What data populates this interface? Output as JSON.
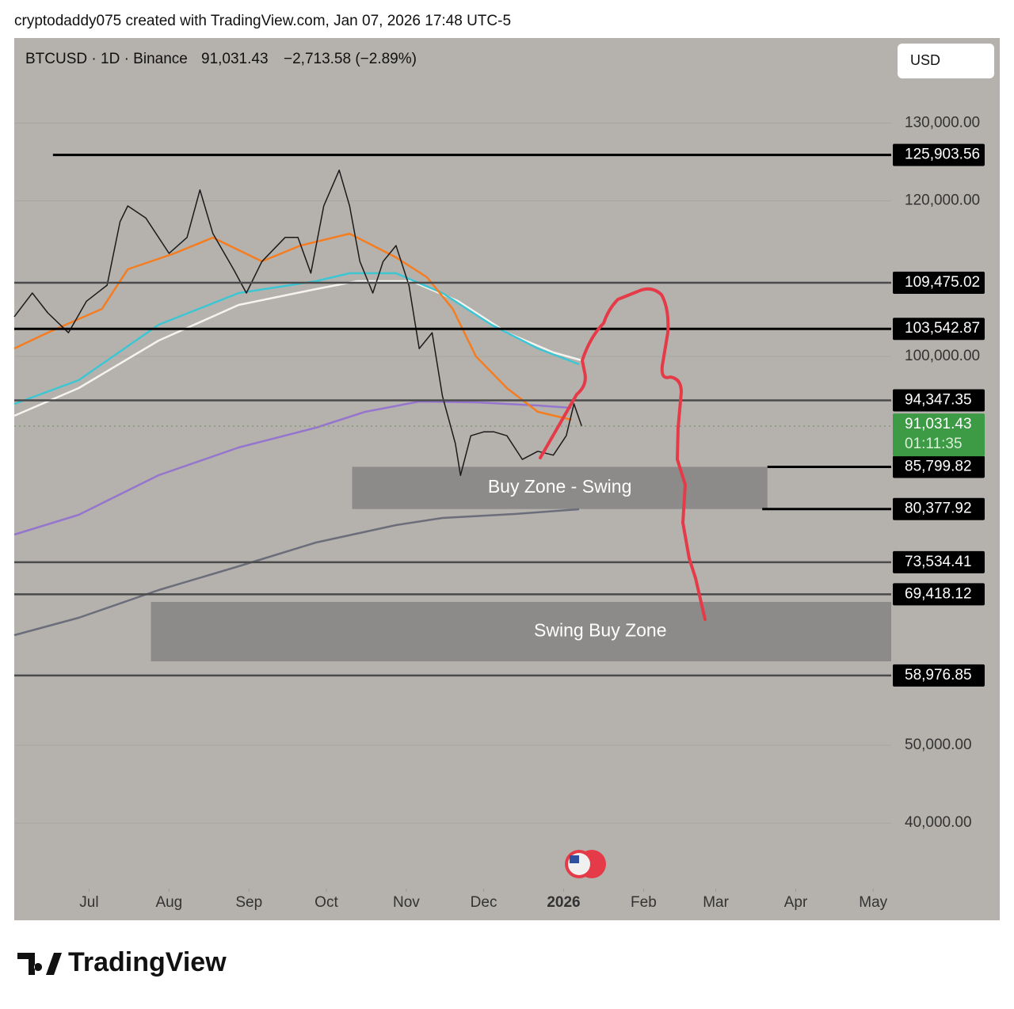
{
  "header": {
    "credit": "cryptodaddy075 created with TradingView.com, Jan 07, 2026 17:48 UTC-5",
    "symbol": "BTCUSD · 1D · Binance",
    "price": "91,031.43",
    "change": "−2,713.58 (−2.89%)",
    "currency": "USD"
  },
  "footer": {
    "brand": "TradingView"
  },
  "chart_data": {
    "type": "line",
    "xlim": [
      0,
      340
    ],
    "ylim": [
      31774,
      140936
    ],
    "xticks": [
      {
        "value": 29,
        "label": "Jul"
      },
      {
        "value": 60,
        "label": "Aug"
      },
      {
        "value": 91,
        "label": "Sep"
      },
      {
        "value": 121,
        "label": "Oct"
      },
      {
        "value": 152,
        "label": "Nov"
      },
      {
        "value": 182,
        "label": "Dec"
      },
      {
        "value": 213,
        "label": "2026"
      },
      {
        "value": 244,
        "label": "Feb"
      },
      {
        "value": 272,
        "label": "Mar"
      },
      {
        "value": 303,
        "label": "Apr"
      },
      {
        "value": 333,
        "label": "May"
      }
    ],
    "yticks": [
      {
        "value": 130000,
        "label": "130,000.00"
      },
      {
        "value": 120000,
        "label": "120,000.00"
      },
      {
        "value": 100000,
        "label": "100,000.00"
      },
      {
        "value": 50000,
        "label": "50,000.00"
      },
      {
        "value": 40000,
        "label": "40,000.00"
      }
    ],
    "grid": true,
    "series": [
      {
        "color": "#1a1a1a",
        "x": [
          0,
          7,
          13,
          21,
          28,
          36,
          41,
          44,
          51,
          60,
          67,
          72,
          77,
          85,
          90,
          96,
          105,
          110,
          115,
          120,
          126,
          130,
          134,
          139,
          143,
          148,
          153,
          157,
          162,
          166,
          171,
          173,
          177,
          182,
          186,
          191,
          197,
          203,
          209,
          214,
          217,
          220
        ],
        "values": [
          105100,
          108150,
          105600,
          103050,
          107100,
          109150,
          117300,
          119350,
          117800,
          113250,
          115300,
          121400,
          115800,
          111200,
          108150,
          112200,
          115300,
          115300,
          110700,
          119350,
          123950,
          119350,
          112200,
          108150,
          112200,
          114250,
          109150,
          101000,
          103050,
          94900,
          88800,
          84700,
          89800,
          90300,
          90300,
          89800,
          86750,
          87800,
          87300,
          89800,
          93900,
          91031.43
        ]
      },
      {
        "color": "#f57c1f",
        "x": [
          0,
          13,
          34,
          44,
          62,
          77,
          96,
          111,
          130,
          139,
          148,
          160,
          170,
          179,
          191,
          203,
          216
        ],
        "values": [
          101018,
          103055,
          106110,
          111201,
          113238,
          115275,
          112220,
          114256,
          115784,
          114256,
          112729,
          110183,
          106110,
          100000,
          95927,
          92872,
          91854
        ]
      },
      {
        "color": "#3cc6d4",
        "x": [
          0,
          25,
          56,
          87,
          117,
          130,
          148,
          166,
          185,
          203,
          219
        ],
        "values": [
          93890,
          96945,
          104073,
          108146,
          109674,
          110692,
          110692,
          108146,
          104073,
          101018,
          98982
        ]
      },
      {
        "color": "#f5f3ee",
        "x": [
          0,
          25,
          56,
          87,
          117,
          133,
          154,
          172,
          191,
          209,
          220
        ],
        "values": [
          92363,
          95927,
          102037,
          106619,
          108656,
          109674,
          109674,
          107128,
          103055,
          100509,
          99491
        ]
      },
      {
        "color": "#9575cd",
        "x": [
          0,
          25,
          56,
          87,
          117,
          136,
          157,
          179,
          203,
          216
        ],
        "values": [
          77088,
          79634,
          84725,
          88290,
          90835,
          92872,
          94196,
          94094,
          93687,
          93381
        ]
      },
      {
        "color": "#6b6e7a",
        "x": [
          0,
          25,
          56,
          87,
          117,
          148,
          166,
          194,
          219
        ],
        "values": [
          64156,
          66396,
          69960,
          73015,
          76070,
          78310,
          79227,
          79736,
          80347
        ]
      }
    ],
    "levels": [
      {
        "value": 125903.56,
        "label": "125,903.56",
        "from": 15,
        "color": "#000000"
      },
      {
        "value": 109475.02,
        "label": "109,475.02",
        "from": 0,
        "color": "#4a4a4a"
      },
      {
        "value": 103542.87,
        "label": "103,542.87",
        "from": 0,
        "color": "#000000"
      },
      {
        "value": 94347.35,
        "label": "94,347.35",
        "from": 0,
        "color": "#4a4a4a"
      },
      {
        "value": 85799.82,
        "label": "85,799.82",
        "from": 292,
        "color": "#000000"
      },
      {
        "value": 80377.92,
        "label": "80,377.92",
        "from": 290,
        "color": "#000000"
      },
      {
        "value": 73534.41,
        "label": "73,534.41",
        "from": 0,
        "color": "#4a4a4a"
      },
      {
        "value": 69418.12,
        "label": "69,418.12",
        "from": 0,
        "color": "#4a4a4a"
      },
      {
        "value": 58976.85,
        "label": "58,976.85",
        "from": 0,
        "color": "#4a4a4a"
      }
    ],
    "current_price": {
      "value": 91031.43,
      "label": "91,031.43",
      "countdown": "01:11:35",
      "color": "#3d9a45"
    },
    "zones": [
      {
        "label": "Buy Zone - Swing",
        "x": [
          131,
          292
        ],
        "y": [
          80377.92,
          85799.82
        ]
      },
      {
        "label": "Swing Buy Zone",
        "x": [
          53,
          340
        ],
        "y": [
          60794,
          68432
        ]
      }
    ]
  }
}
